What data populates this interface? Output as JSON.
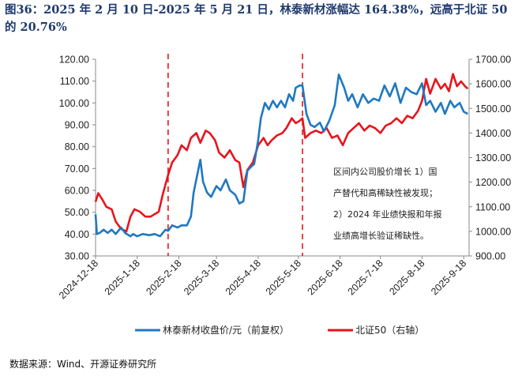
{
  "title": "图36：2025 年 2 月 10 日-2025 年 5 月 21 日，林泰新材涨幅达 164.38%，远高于北证 50 的 20.76%",
  "source": "数据来源：Wind、开源证券研究所",
  "annotation": [
    "区间内公司股价增长 1）国",
    "产替代和高稀缺性被发现；",
    "2）2024 年业绩快报和年报",
    "业绩高增长验证稀缺性。"
  ],
  "colors": {
    "series1": "#1F78C1",
    "series2": "#E8141B",
    "vline": "#E8141B"
  },
  "chart_data": {
    "type": "line",
    "x_tick_labels": [
      "2024-12-18",
      "2025-1-18",
      "2025-2-18",
      "2025-3-18",
      "2025-4-18",
      "2025-5-18",
      "2025-6-18",
      "2025-7-18",
      "2025-8-18",
      "2025-9-18"
    ],
    "xlim": [
      "2024-12-18",
      "2025-9-22"
    ],
    "y_left": {
      "ylim": [
        30,
        120
      ],
      "tick_labels": [
        "30.00",
        "40.00",
        "50.00",
        "60.00",
        "70.00",
        "80.00",
        "90.00",
        "100.00",
        "110.00",
        "120.00"
      ]
    },
    "y_right": {
      "ylim": [
        900,
        1700
      ],
      "tick_labels": [
        "900.00",
        "1000.00",
        "1100.00",
        "1200.00",
        "1300.00",
        "1400.00",
        "1500.00",
        "1600.00",
        "1700.00"
      ]
    },
    "vertical_lines": [
      "2025-2-10",
      "2025-5-21"
    ],
    "grid": false,
    "legend_position": "bottom",
    "series": [
      {
        "name": "林泰新材收盘价/元（前复权）",
        "axis": "left",
        "points": [
          [
            "2024-12-18",
            49
          ],
          [
            "2024-12-19",
            40
          ],
          [
            "2024-12-21",
            40.5
          ],
          [
            "2024-12-24",
            42
          ],
          [
            "2024-12-27",
            40.5
          ],
          [
            "2024-12-30",
            42
          ],
          [
            "2025-1-2",
            40
          ],
          [
            "2025-1-6",
            43
          ],
          [
            "2025-1-9",
            40.5
          ],
          [
            "2025-1-13",
            39
          ],
          [
            "2025-1-15",
            40
          ],
          [
            "2025-1-18",
            39
          ],
          [
            "2025-1-22",
            40
          ],
          [
            "2025-1-27",
            39.5
          ],
          [
            "2025-1-31",
            40
          ],
          [
            "2025-2-4",
            39
          ],
          [
            "2025-2-8",
            42
          ],
          [
            "2025-2-10",
            41.5
          ],
          [
            "2025-2-13",
            44
          ],
          [
            "2025-2-17",
            43
          ],
          [
            "2025-2-20",
            44
          ],
          [
            "2025-2-24",
            44
          ],
          [
            "2025-2-27",
            48
          ],
          [
            "2025-3-1",
            59
          ],
          [
            "2025-3-4",
            68
          ],
          [
            "2025-3-6",
            74
          ],
          [
            "2025-3-8",
            64
          ],
          [
            "2025-3-11",
            59
          ],
          [
            "2025-3-14",
            57
          ],
          [
            "2025-3-18",
            62
          ],
          [
            "2025-3-21",
            60
          ],
          [
            "2025-3-25",
            65
          ],
          [
            "2025-3-28",
            60
          ],
          [
            "2025-4-1",
            58
          ],
          [
            "2025-4-4",
            54
          ],
          [
            "2025-4-7",
            55
          ],
          [
            "2025-4-10",
            69
          ],
          [
            "2025-4-13",
            71
          ],
          [
            "2025-4-15",
            72
          ],
          [
            "2025-4-18",
            83
          ],
          [
            "2025-4-20",
            93
          ],
          [
            "2025-4-23",
            100
          ],
          [
            "2025-4-26",
            97
          ],
          [
            "2025-4-29",
            101
          ],
          [
            "2025-5-2",
            98
          ],
          [
            "2025-5-5",
            101
          ],
          [
            "2025-5-8",
            98
          ],
          [
            "2025-5-11",
            104
          ],
          [
            "2025-5-14",
            101
          ],
          [
            "2025-5-16",
            107
          ],
          [
            "2025-5-19",
            108
          ],
          [
            "2025-5-21",
            108
          ],
          [
            "2025-5-24",
            95
          ],
          [
            "2025-5-27",
            90
          ],
          [
            "2025-5-30",
            89
          ],
          [
            "2025-6-3",
            91
          ],
          [
            "2025-6-6",
            87
          ],
          [
            "2025-6-10",
            92
          ],
          [
            "2025-6-14",
            99
          ],
          [
            "2025-6-17",
            113
          ],
          [
            "2025-6-21",
            107
          ],
          [
            "2025-6-24",
            101
          ],
          [
            "2025-6-27",
            104
          ],
          [
            "2025-7-1",
            98
          ],
          [
            "2025-7-5",
            104
          ],
          [
            "2025-7-9",
            100
          ],
          [
            "2025-7-13",
            102
          ],
          [
            "2025-7-17",
            101
          ],
          [
            "2025-7-21",
            108
          ],
          [
            "2025-7-25",
            103
          ],
          [
            "2025-7-29",
            109
          ],
          [
            "2025-8-2",
            100
          ],
          [
            "2025-8-6",
            107
          ],
          [
            "2025-8-10",
            105
          ],
          [
            "2025-8-14",
            104
          ],
          [
            "2025-8-18",
            109
          ],
          [
            "2025-8-21",
            99
          ],
          [
            "2025-8-24",
            101
          ],
          [
            "2025-8-28",
            96
          ],
          [
            "2025-9-1",
            100
          ],
          [
            "2025-9-4",
            95
          ],
          [
            "2025-9-8",
            101
          ],
          [
            "2025-9-11",
            98
          ],
          [
            "2025-9-15",
            100
          ],
          [
            "2025-9-18",
            96
          ],
          [
            "2025-9-21",
            95
          ]
        ]
      },
      {
        "name": "北证50（右轴）",
        "axis": "right",
        "points": [
          [
            "2024-12-18",
            1120
          ],
          [
            "2024-12-20",
            1155
          ],
          [
            "2024-12-23",
            1130
          ],
          [
            "2024-12-26",
            1100
          ],
          [
            "2024-12-30",
            1090
          ],
          [
            "2025-1-2",
            1040
          ],
          [
            "2025-1-6",
            1010
          ],
          [
            "2025-1-10",
            1000
          ],
          [
            "2025-1-13",
            1060
          ],
          [
            "2025-1-16",
            1090
          ],
          [
            "2025-1-20",
            1080
          ],
          [
            "2025-1-24",
            1060
          ],
          [
            "2025-1-28",
            1060
          ],
          [
            "2025-2-3",
            1080
          ],
          [
            "2025-2-6",
            1150
          ],
          [
            "2025-2-10",
            1230
          ],
          [
            "2025-2-13",
            1280
          ],
          [
            "2025-2-17",
            1310
          ],
          [
            "2025-2-20",
            1350
          ],
          [
            "2025-2-24",
            1330
          ],
          [
            "2025-2-27",
            1380
          ],
          [
            "2025-3-3",
            1400
          ],
          [
            "2025-3-6",
            1360
          ],
          [
            "2025-3-10",
            1410
          ],
          [
            "2025-3-13",
            1400
          ],
          [
            "2025-3-17",
            1370
          ],
          [
            "2025-3-20",
            1320
          ],
          [
            "2025-3-24",
            1300
          ],
          [
            "2025-3-28",
            1330
          ],
          [
            "2025-4-1",
            1290
          ],
          [
            "2025-4-4",
            1280
          ],
          [
            "2025-4-7",
            1180
          ],
          [
            "2025-4-10",
            1250
          ],
          [
            "2025-4-14",
            1280
          ],
          [
            "2025-4-18",
            1350
          ],
          [
            "2025-4-22",
            1380
          ],
          [
            "2025-4-25",
            1350
          ],
          [
            "2025-4-28",
            1370
          ],
          [
            "2025-5-2",
            1390
          ],
          [
            "2025-5-6",
            1400
          ],
          [
            "2025-5-9",
            1420
          ],
          [
            "2025-5-13",
            1460
          ],
          [
            "2025-5-16",
            1440
          ],
          [
            "2025-5-19",
            1450
          ],
          [
            "2025-5-21",
            1460
          ],
          [
            "2025-5-23",
            1380
          ],
          [
            "2025-5-27",
            1400
          ],
          [
            "2025-5-31",
            1410
          ],
          [
            "2025-6-4",
            1400
          ],
          [
            "2025-6-8",
            1420
          ],
          [
            "2025-6-12",
            1380
          ],
          [
            "2025-6-16",
            1390
          ],
          [
            "2025-6-20",
            1350
          ],
          [
            "2025-6-24",
            1400
          ],
          [
            "2025-6-28",
            1420
          ],
          [
            "2025-7-2",
            1440
          ],
          [
            "2025-7-6",
            1410
          ],
          [
            "2025-7-10",
            1430
          ],
          [
            "2025-7-14",
            1420
          ],
          [
            "2025-7-18",
            1400
          ],
          [
            "2025-7-22",
            1430
          ],
          [
            "2025-7-26",
            1440
          ],
          [
            "2025-7-30",
            1460
          ],
          [
            "2025-8-3",
            1440
          ],
          [
            "2025-8-7",
            1470
          ],
          [
            "2025-8-11",
            1460
          ],
          [
            "2025-8-15",
            1490
          ],
          [
            "2025-8-18",
            1530
          ],
          [
            "2025-8-21",
            1620
          ],
          [
            "2025-8-24",
            1560
          ],
          [
            "2025-8-28",
            1620
          ],
          [
            "2025-9-1",
            1580
          ],
          [
            "2025-9-4",
            1600
          ],
          [
            "2025-9-7",
            1570
          ],
          [
            "2025-9-10",
            1640
          ],
          [
            "2025-9-13",
            1590
          ],
          [
            "2025-9-16",
            1610
          ],
          [
            "2025-9-19",
            1590
          ],
          [
            "2025-9-21",
            1580
          ]
        ]
      }
    ]
  }
}
